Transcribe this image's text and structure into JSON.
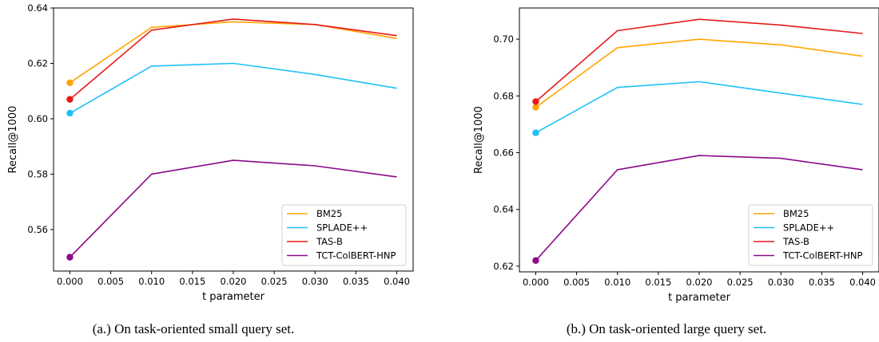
{
  "chart_data": [
    {
      "type": "line",
      "caption": "(a.) On task-oriented small query set.",
      "xlabel": "t parameter",
      "ylabel": "Recall@1000",
      "xlim": [
        -0.002,
        0.042
      ],
      "ylim": [
        0.545,
        0.64
      ],
      "x_ticks": [
        "0.000",
        "0.005",
        "0.010",
        "0.015",
        "0.020",
        "0.025",
        "0.030",
        "0.035",
        "0.040"
      ],
      "y_ticks": [
        "0.56",
        "0.58",
        "0.60",
        "0.62",
        "0.64"
      ],
      "grid": false,
      "legend_position": "lower-right",
      "x": [
        0.0,
        0.01,
        0.02,
        0.03,
        0.04
      ],
      "series": [
        {
          "name": "BM25",
          "color": "#ffa500",
          "values": [
            0.613,
            0.633,
            0.635,
            0.634,
            0.629
          ]
        },
        {
          "name": "SPLADE++",
          "color": "#1ec0f8",
          "values": [
            0.602,
            0.619,
            0.62,
            0.616,
            0.611
          ]
        },
        {
          "name": "TAS-B",
          "color": "#e81a1a",
          "values": [
            0.607,
            0.632,
            0.636,
            0.634,
            0.63
          ]
        },
        {
          "name": "TCT-ColBERT-HNP",
          "color": "#8b0a8b",
          "values": [
            0.55,
            0.58,
            0.585,
            0.583,
            0.579
          ]
        }
      ]
    },
    {
      "type": "line",
      "caption": "(b.) On task-oriented large query set.",
      "xlabel": "t parameter",
      "ylabel": "Recall@1000",
      "xlim": [
        -0.002,
        0.042
      ],
      "ylim": [
        0.618,
        0.711
      ],
      "x_ticks": [
        "0.000",
        "0.005",
        "0.010",
        "0.015",
        "0.020",
        "0.025",
        "0.030",
        "0.035",
        "0.040"
      ],
      "y_ticks": [
        "0.62",
        "0.64",
        "0.66",
        "0.68",
        "0.70"
      ],
      "grid": false,
      "legend_position": "lower-right",
      "x": [
        0.0,
        0.01,
        0.02,
        0.03,
        0.04
      ],
      "series": [
        {
          "name": "BM25",
          "color": "#ffa500",
          "values": [
            0.676,
            0.697,
            0.7,
            0.698,
            0.694
          ]
        },
        {
          "name": "SPLADE++",
          "color": "#1ec0f8",
          "values": [
            0.667,
            0.683,
            0.685,
            0.681,
            0.677
          ]
        },
        {
          "name": "TAS-B",
          "color": "#e81a1a",
          "values": [
            0.678,
            0.703,
            0.707,
            0.705,
            0.702
          ]
        },
        {
          "name": "TCT-ColBERT-HNP",
          "color": "#8b0a8b",
          "values": [
            0.622,
            0.654,
            0.659,
            0.658,
            0.654
          ]
        }
      ]
    }
  ]
}
